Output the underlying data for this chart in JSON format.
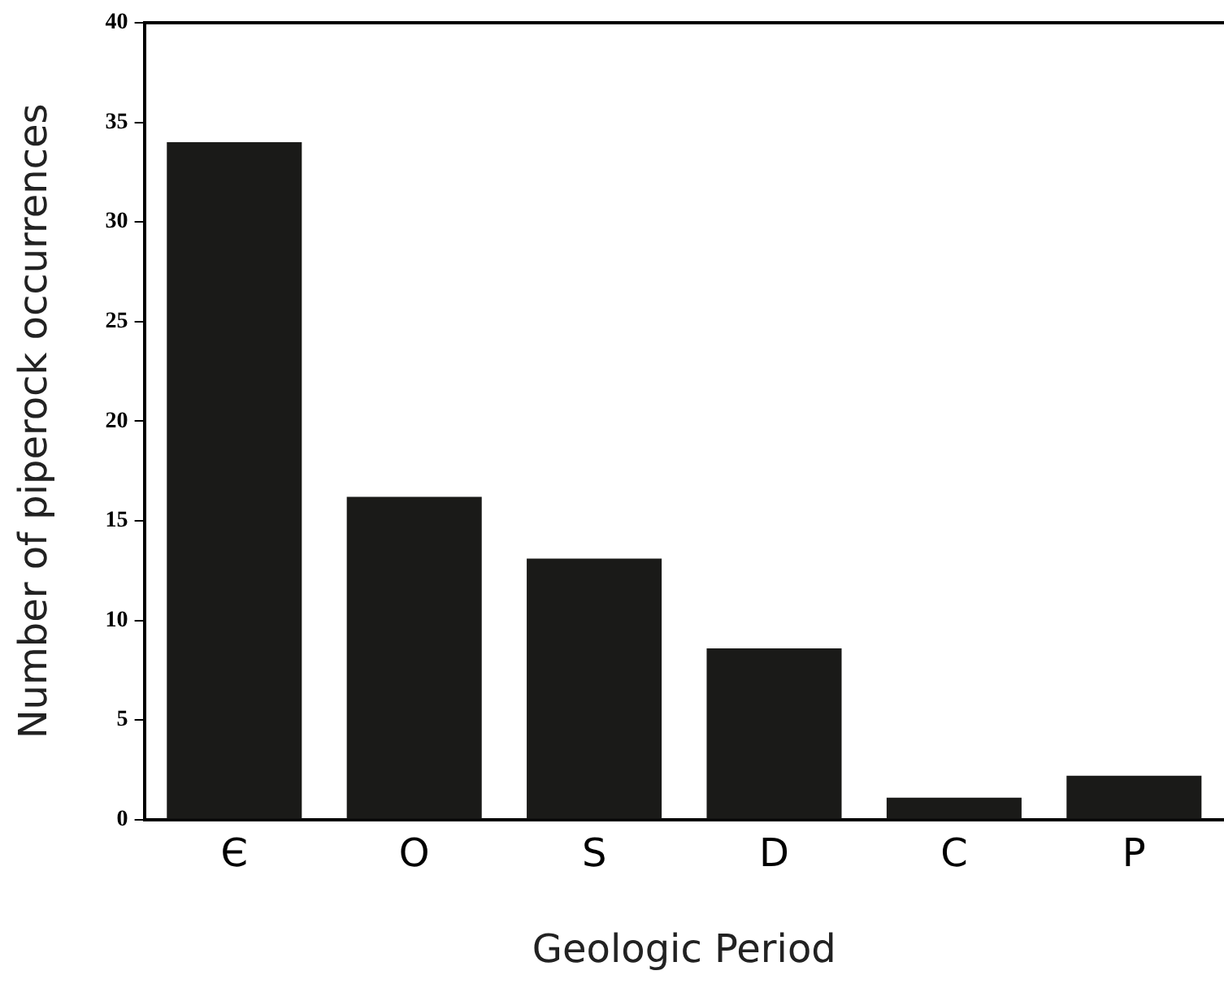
{
  "chart_data": {
    "type": "bar",
    "xlabel": "Geologic Period",
    "ylabel": "Number of piperock occurrences",
    "categories": [
      "Є",
      "O",
      "S",
      "D",
      "C",
      "P"
    ],
    "values": [
      34,
      16.2,
      13.1,
      8.6,
      1.1,
      2.2
    ],
    "color": "#1a1a18",
    "ylim": [
      0,
      40
    ],
    "yticks": [
      0,
      5,
      10,
      15,
      20,
      25,
      30,
      35,
      40
    ],
    "grid": false,
    "legend": false
  }
}
